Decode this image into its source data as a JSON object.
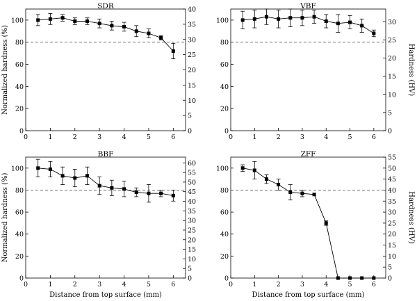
{
  "chart_data": [
    {
      "type": "line",
      "title": "SDR",
      "xlabel": "",
      "ylabel": "Normalized hardness (%)",
      "y2label": "",
      "xlim": [
        0,
        6.5
      ],
      "ylim": [
        0,
        110
      ],
      "y2lim": [
        0,
        40
      ],
      "xticks": [
        0,
        1,
        2,
        3,
        4,
        5,
        6
      ],
      "yticks": [
        0,
        20,
        40,
        60,
        80,
        100
      ],
      "y2ticks": [
        0,
        5,
        10,
        15,
        20,
        25,
        30,
        35,
        40
      ],
      "reference_line": 80,
      "x": [
        0.5,
        1.0,
        1.5,
        2.0,
        2.5,
        3.0,
        3.5,
        4.0,
        4.5,
        5.0,
        5.5,
        6.0
      ],
      "values": [
        100,
        101,
        102,
        99,
        99,
        97,
        95,
        94,
        90,
        88,
        84,
        72
      ],
      "errors": [
        5,
        5,
        3,
        3,
        3,
        4,
        4,
        4,
        5,
        4,
        2,
        7
      ]
    },
    {
      "type": "line",
      "title": "VBF",
      "xlabel": "",
      "ylabel": "",
      "y2label": "Hardness (HV)",
      "xlim": [
        0,
        6.5
      ],
      "ylim": [
        0,
        110
      ],
      "y2lim": [
        0,
        33.5
      ],
      "xticks": [
        0,
        1,
        2,
        3,
        4,
        5,
        6
      ],
      "yticks": [
        0,
        20,
        40,
        60,
        80,
        100
      ],
      "y2ticks": [
        0,
        5,
        10,
        15,
        20,
        25,
        30
      ],
      "reference_line": 80,
      "x": [
        0.5,
        1.0,
        1.5,
        2.0,
        2.5,
        3.0,
        3.5,
        4.0,
        4.5,
        5.0,
        5.5,
        6.0
      ],
      "values": [
        100,
        101,
        103,
        101,
        102,
        102,
        103,
        99,
        97,
        98,
        95,
        88
      ],
      "errors": [
        8,
        8,
        7,
        8,
        8,
        7,
        6,
        6,
        8,
        6,
        6,
        3
      ]
    },
    {
      "type": "line",
      "title": "BBF",
      "xlabel": "Distance from top surface (mm)",
      "ylabel": "Normalized hardness (%)",
      "y2label": "",
      "xlim": [
        0,
        6.5
      ],
      "ylim": [
        0,
        110
      ],
      "y2lim": [
        0,
        63
      ],
      "xticks": [
        0,
        1,
        2,
        3,
        4,
        5,
        6
      ],
      "yticks": [
        0,
        20,
        40,
        60,
        80,
        100
      ],
      "y2ticks": [
        0,
        5,
        10,
        15,
        20,
        25,
        30,
        35,
        40,
        45,
        50,
        55,
        60
      ],
      "reference_line": 80,
      "x": [
        0.5,
        1.0,
        1.5,
        2.0,
        2.5,
        3.0,
        3.5,
        4.0,
        4.5,
        5.0,
        5.5,
        6.0
      ],
      "values": [
        100,
        99,
        93,
        91,
        93,
        84,
        82,
        81,
        78,
        77,
        77,
        75
      ],
      "errors": [
        8,
        7,
        8,
        8,
        8,
        8,
        7,
        7,
        4,
        8,
        3,
        5
      ]
    },
    {
      "type": "line",
      "title": "ZFF",
      "xlabel": "Distance from top surface (mm)",
      "ylabel": "",
      "y2label": "Hardness (HV)",
      "xlim": [
        0,
        6.5
      ],
      "ylim": [
        0,
        110
      ],
      "y2lim": [
        0,
        55
      ],
      "xticks": [
        0,
        1,
        2,
        3,
        4,
        5,
        6
      ],
      "yticks": [
        0,
        20,
        40,
        60,
        80,
        100
      ],
      "y2ticks": [
        0,
        5,
        10,
        15,
        20,
        25,
        30,
        35,
        40,
        45,
        50,
        55
      ],
      "reference_line": 80,
      "x": [
        0.5,
        1.0,
        1.5,
        2.0,
        2.5,
        3.0,
        3.5,
        4.0,
        4.5,
        5.0,
        5.5,
        6.0
      ],
      "values": [
        100,
        98,
        90,
        85,
        78,
        77,
        76,
        50,
        0,
        0,
        0,
        0
      ],
      "errors": [
        3,
        8,
        4,
        5,
        7,
        3,
        0,
        2,
        0,
        0,
        0,
        0
      ]
    }
  ]
}
